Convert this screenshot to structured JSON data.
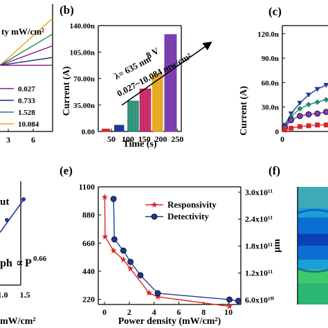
{
  "panel_labels": {
    "b": "(b)",
    "c": "(c)",
    "e": "(e)",
    "f": "(f)"
  },
  "chart_data": [
    {
      "panel": "a-fragment",
      "type": "line",
      "legend_title": "ty mW/cm²",
      "x_ticks": [
        "3",
        "6"
      ],
      "series": [
        {
          "name": "0.027",
          "color": "#8b1a8b"
        },
        {
          "name": "0.733",
          "color": "#1a237e"
        },
        {
          "name": "1.528",
          "color": "#2a6f97"
        },
        {
          "name": "10.084",
          "color": "#e6a817"
        }
      ],
      "lines": [
        {
          "color": "#e6a817",
          "y": [
            0.06,
            0.78
          ]
        },
        {
          "color": "#2e8b57",
          "y": [
            0.06,
            0.54
          ]
        },
        {
          "color": "#8b1a8b",
          "y": [
            0.06,
            0.36
          ]
        },
        {
          "color": "#1a237e",
          "y": [
            0.06,
            0.18
          ]
        },
        {
          "color": "#8b1a8b",
          "y": [
            0.06,
            0.06
          ]
        }
      ]
    },
    {
      "panel": "b",
      "type": "line",
      "xlabel": "Time (s)",
      "ylabel": "Current (A)",
      "xlim": [
        10,
        262
      ],
      "ylim": [
        0,
        140
      ],
      "x_ticks": [
        50,
        100,
        150,
        200,
        250
      ],
      "y_ticks": [
        0,
        35,
        70,
        105,
        140
      ],
      "y_tick_labels": [
        "0.00",
        "35.00n",
        "70.00n",
        "105.00n",
        "140.00n"
      ],
      "annotations": [
        "λ= 635 nm",
        "8 V",
        "0.027~10.084 mw/cm²"
      ],
      "square_waves": [
        {
          "color": "#d62728",
          "t_start": 22,
          "t_end": 47,
          "off": 0.3,
          "on": 3,
          "period": 5
        },
        {
          "color": "#1f3a93",
          "t_start": 60,
          "t_end": 90,
          "off": 0.3,
          "on": 8,
          "period": 6
        },
        {
          "color": "#1a8a6e",
          "t_start": 100,
          "t_end": 135,
          "off": 0.3,
          "on": 40,
          "period": 7
        },
        {
          "color": "#c2185b",
          "t_start": 137,
          "t_end": 172,
          "off": 0.3,
          "on": 56,
          "period": 7
        },
        {
          "color": "#e6a817",
          "t_start": 175,
          "t_end": 208,
          "off": 0.3,
          "on": 75,
          "period": 6.6
        },
        {
          "color": "#7b3fb0",
          "t_start": 212,
          "t_end": 250,
          "off": 0.3,
          "on": 128,
          "period": 6.3
        }
      ]
    },
    {
      "panel": "c",
      "type": "line",
      "ylabel": "Current (A)",
      "xlim": [
        0,
        6
      ],
      "ylim": [
        0,
        130
      ],
      "x_ticks": [
        0
      ],
      "y_ticks": [
        0,
        30,
        60,
        90,
        120
      ],
      "y_tick_labels": [
        "0",
        "30.0n",
        "60.0n",
        "90.0n",
        "120.0n"
      ],
      "series": [
        {
          "color": "#1f3a93",
          "marker": "triangle-down",
          "points": [
            [
              0.3,
              8
            ],
            [
              1,
              22
            ],
            [
              2,
              35
            ],
            [
              3,
              45
            ],
            [
              4,
              52
            ],
            [
              5,
              57
            ],
            [
              6,
              60
            ]
          ]
        },
        {
          "color": "#1a8a6e",
          "marker": "diamond",
          "points": [
            [
              0.3,
              6
            ],
            [
              1,
              18
            ],
            [
              2,
              28
            ],
            [
              3,
              33
            ],
            [
              4,
              36
            ],
            [
              5,
              39
            ],
            [
              6,
              41
            ]
          ]
        },
        {
          "color": "#7b3fb0",
          "marker": "circle",
          "points": [
            [
              0.3,
              5
            ],
            [
              1,
              14
            ],
            [
              2,
              19
            ],
            [
              3,
              21
            ],
            [
              4,
              22
            ],
            [
              5,
              24
            ],
            [
              6,
              25
            ]
          ]
        },
        {
          "color": "#d62728",
          "marker": "square",
          "points": [
            [
              0.3,
              2
            ],
            [
              1,
              4
            ],
            [
              2,
              6
            ],
            [
              3,
              7
            ],
            [
              4,
              8
            ],
            [
              5,
              8
            ],
            [
              6,
              9
            ]
          ]
        }
      ]
    },
    {
      "panel": "d-fragment",
      "type": "scatter",
      "labels": [
        "ut",
        "ph",
        "∝",
        "P",
        "0.66",
        "mW/cm²"
      ],
      "xlim": [
        0.3,
        1.6
      ],
      "ylim": [
        0,
        1
      ],
      "x_ticks": [
        1.0,
        1.5
      ],
      "x_tick_labels": [
        "1.0",
        "1.5"
      ],
      "fit_color": "#1f3a93",
      "points": [
        [
          1.05,
          0.62
        ],
        [
          1.5,
          0.86
        ]
      ],
      "fit_line": [
        [
          0.3,
          0.28
        ],
        [
          1.6,
          0.88
        ]
      ]
    },
    {
      "panel": "e",
      "type": "line",
      "xlabel": "Power density (mW/cm²)",
      "xlim": [
        -0.5,
        11
      ],
      "x_ticks": [
        0,
        2,
        4,
        6,
        8,
        10
      ],
      "left_ylim": [
        180,
        1100
      ],
      "left_y_ticks": [
        220,
        440,
        660,
        880,
        1100
      ],
      "right_ylim": [
        50000000000.0,
        312000000000.0
      ],
      "right_y_ticks": [
        60000000000.0,
        120000000000.0,
        180000000000.0,
        240000000000.0,
        300000000000.0
      ],
      "right_y_tick_labels": [
        "6.0x10¹⁰",
        "1.2x10¹¹",
        "1.8x10¹¹",
        "2.4x10¹¹",
        "3.0x10¹¹"
      ],
      "legend_placement": "top-right",
      "series": [
        {
          "name": "Responsivity",
          "axis": "left",
          "color": "#d62728",
          "marker": "star",
          "points": [
            [
              0.027,
              1020
            ],
            [
              0.05,
              710
            ],
            [
              0.733,
              600
            ],
            [
              1.528,
              530
            ],
            [
              2.1,
              460
            ],
            [
              3.6,
              270
            ],
            [
              4.3,
              240
            ],
            [
              10.084,
              165
            ]
          ]
        },
        {
          "name": "Detectivity",
          "axis": "right",
          "color": "#1f3a93",
          "marker": "circle",
          "points": [
            [
              0.733,
              285000000000.0
            ],
            [
              0.8,
              195000000000.0
            ],
            [
              1.528,
              170000000000.0
            ],
            [
              2.1,
              145000000000.0
            ],
            [
              2.9,
              115000000000.0
            ],
            [
              4.3,
              75000000000.0
            ],
            [
              10.084,
              61000000000.0
            ],
            [
              10.8,
              58000000000.0
            ]
          ]
        }
      ]
    },
    {
      "panel": "f-fragment",
      "type": "heatmap",
      "ylabel": "μm"
    }
  ]
}
